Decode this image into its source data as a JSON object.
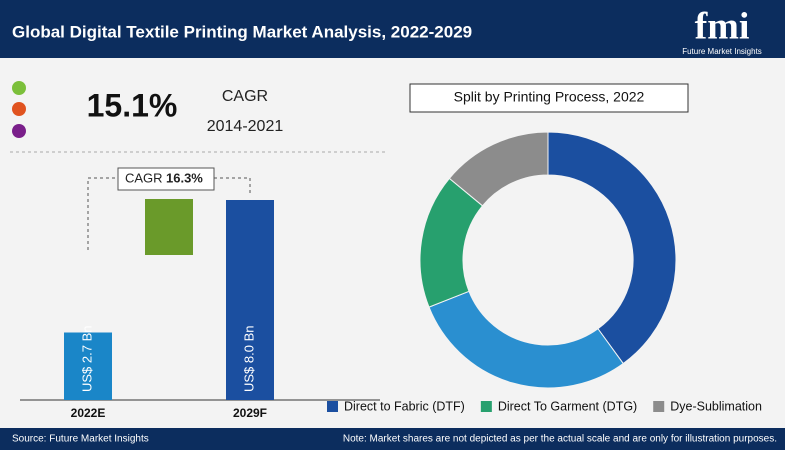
{
  "header": {
    "title": "Global Digital Textile Printing Market Analysis, 2022-2029",
    "logo": "fmi",
    "logo_caption": "Future Market Insights"
  },
  "cagr": {
    "value": "15.1%",
    "label": "CAGR",
    "period": "2014-2021"
  },
  "chart_data": [
    {
      "type": "bar",
      "categories": [
        "2022E",
        "2029F"
      ],
      "values": [
        2.7,
        8.0
      ],
      "value_labels": [
        "US$ 2.7 Bn",
        "US$ 8.0 Bn"
      ],
      "colors": [
        "#1a86c8",
        "#1b4fa0"
      ],
      "annotation": {
        "label": "CAGR",
        "value": "16.3%"
      }
    },
    {
      "type": "pie",
      "title": "Split by Printing Process, 2022",
      "categories": [
        "Direct to Fabric (DTF)",
        null,
        "Direct To Garment (DTG)",
        "Dye-Sublimation"
      ],
      "values": [
        40,
        29,
        17,
        14
      ],
      "colors": [
        "#1b4fa0",
        "#2a8fd0",
        "#27a06e",
        "#8c8c8c"
      ]
    }
  ],
  "footer": {
    "source": "Source: Future Market Insights",
    "note": "Note: Market shares are not depicted as per the actual scale and are only for illustration purposes."
  }
}
